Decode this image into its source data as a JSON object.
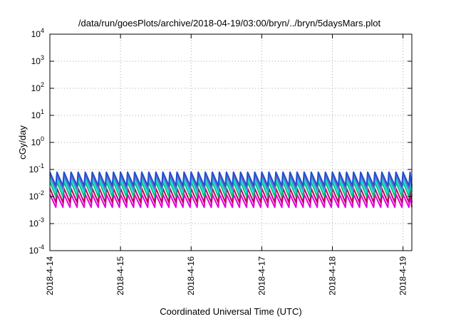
{
  "chart_data": {
    "type": "line",
    "title": "/data/run/goesPlots/archive/2018-04-19/03:00/bryn/../bryn/5daysMars.plot",
    "xlabel": "Coordinated Universal Time (UTC)",
    "ylabel": "cGy/day",
    "yscale": "log",
    "ylim": [
      0.0001,
      10000
    ],
    "y_ticks": [
      {
        "base": "10",
        "exp": "-4",
        "value": 0.0001
      },
      {
        "base": "10",
        "exp": "-3",
        "value": 0.001
      },
      {
        "base": "10",
        "exp": "-2",
        "value": 0.01
      },
      {
        "base": "10",
        "exp": "-1",
        "value": 0.1
      },
      {
        "base": "10",
        "exp": "0",
        "value": 1
      },
      {
        "base": "10",
        "exp": "1",
        "value": 10
      },
      {
        "base": "10",
        "exp": "2",
        "value": 100
      },
      {
        "base": "10",
        "exp": "3",
        "value": 1000
      },
      {
        "base": "10",
        "exp": "4",
        "value": 10000
      }
    ],
    "x_ticks": [
      "2018-4-14",
      "2018-4-15",
      "2018-4-16",
      "2018-4-17",
      "2018-4-18",
      "2018-4-19"
    ],
    "xlim": [
      "2018-04-14T00:00",
      "2018-04-19T03:00"
    ],
    "grid": true,
    "legend": "none",
    "cycles_per_day": 10,
    "series": [
      {
        "color": "#e000e0",
        "peak": 0.012,
        "trough": 0.004
      },
      {
        "color": "#c00060",
        "peak": 0.02,
        "trough": 0.006
      },
      {
        "color": "#00c080",
        "peak": 0.035,
        "trough": 0.01
      },
      {
        "color": "#00d0e0",
        "peak": 0.05,
        "trough": 0.015
      },
      {
        "color": "#8060c0",
        "peak": 0.065,
        "trough": 0.02
      },
      {
        "color": "#2050d0",
        "peak": 0.08,
        "trough": 0.025
      }
    ]
  }
}
